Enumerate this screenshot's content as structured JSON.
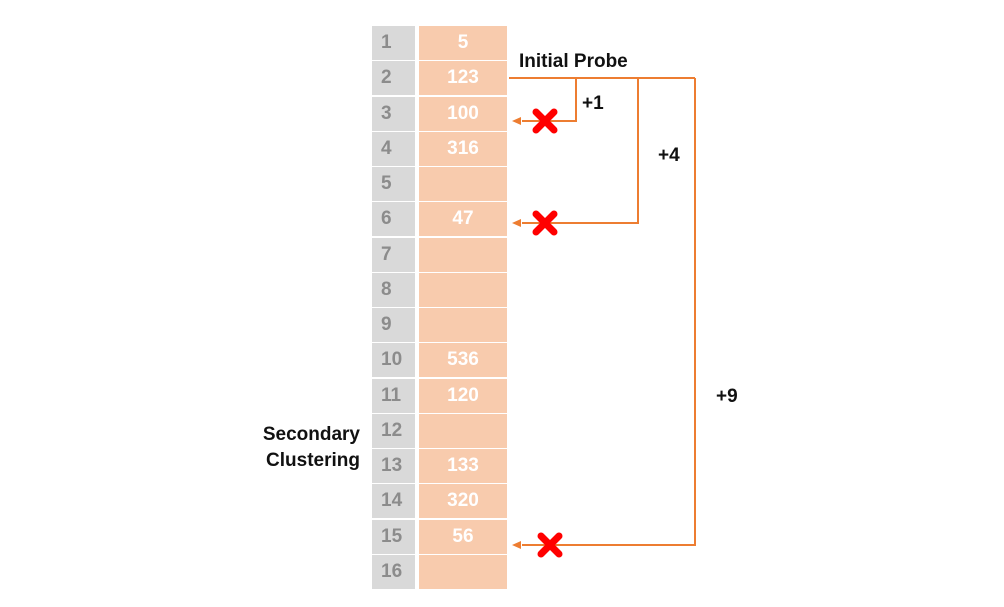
{
  "table": {
    "rows": [
      {
        "index": "1",
        "value": "5"
      },
      {
        "index": "2",
        "value": "123"
      },
      {
        "index": "3",
        "value": "100"
      },
      {
        "index": "4",
        "value": "316"
      },
      {
        "index": "5",
        "value": ""
      },
      {
        "index": "6",
        "value": "47"
      },
      {
        "index": "7",
        "value": ""
      },
      {
        "index": "8",
        "value": ""
      },
      {
        "index": "9",
        "value": ""
      },
      {
        "index": "10",
        "value": "536"
      },
      {
        "index": "11",
        "value": "120"
      },
      {
        "index": "12",
        "value": ""
      },
      {
        "index": "13",
        "value": "133"
      },
      {
        "index": "14",
        "value": "320"
      },
      {
        "index": "15",
        "value": "56"
      },
      {
        "index": "16",
        "value": ""
      }
    ]
  },
  "labels": {
    "initial_probe": "Initial Probe",
    "plus1": "+1",
    "plus4": "+4",
    "plus9": "+9",
    "secondary_line1": "Secondary",
    "secondary_line2": "Clustering"
  },
  "colors": {
    "index_cell": "#d9d9d9",
    "index_text": "#8c8c8c",
    "value_cell": "#f8cbad",
    "value_text": "#ffffff",
    "arrow": "#ed7d31",
    "cross": "#ff0000"
  },
  "icons": [
    "x-cross-icon"
  ]
}
